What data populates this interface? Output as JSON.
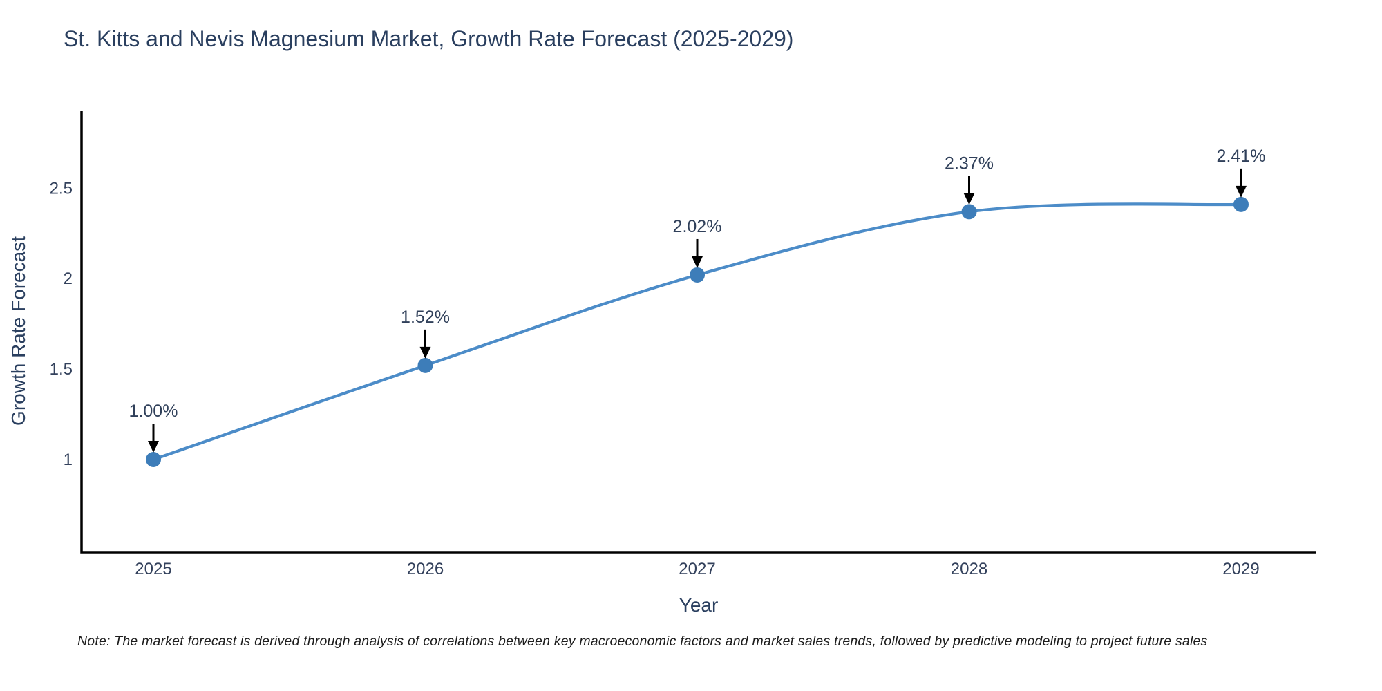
{
  "title": "St. Kitts and Nevis Magnesium Market, Growth Rate Forecast (2025-2029)",
  "note": "Note: The market forecast is derived through analysis of correlations between key macroeconomic factors and market sales trends, followed by predictive modeling to project future sales",
  "chart_data": {
    "type": "line",
    "line_shape": "spline",
    "title": "St. Kitts and Nevis Magnesium Market, Growth Rate Forecast (2025-2029)",
    "xlabel": "Year",
    "ylabel": "Growth Rate Forecast",
    "categories": [
      "2025",
      "2026",
      "2027",
      "2028",
      "2029"
    ],
    "series": [
      {
        "name": "Growth Rate Forecast",
        "values": [
          1.0,
          1.52,
          2.02,
          2.37,
          2.41
        ]
      }
    ],
    "point_labels": [
      "1.00%",
      "1.52%",
      "2.02%",
      "2.37%",
      "2.41%"
    ],
    "yticks": [
      1,
      1.5,
      2,
      2.5
    ],
    "ylim": [
      0.48,
      2.93
    ],
    "grid": false,
    "legend": false,
    "colors": {
      "line": "#4c8cc8",
      "marker": "#3d7db9",
      "axis": "#000000",
      "label_text": "#2a3f5f",
      "arrow": "#000000"
    }
  }
}
